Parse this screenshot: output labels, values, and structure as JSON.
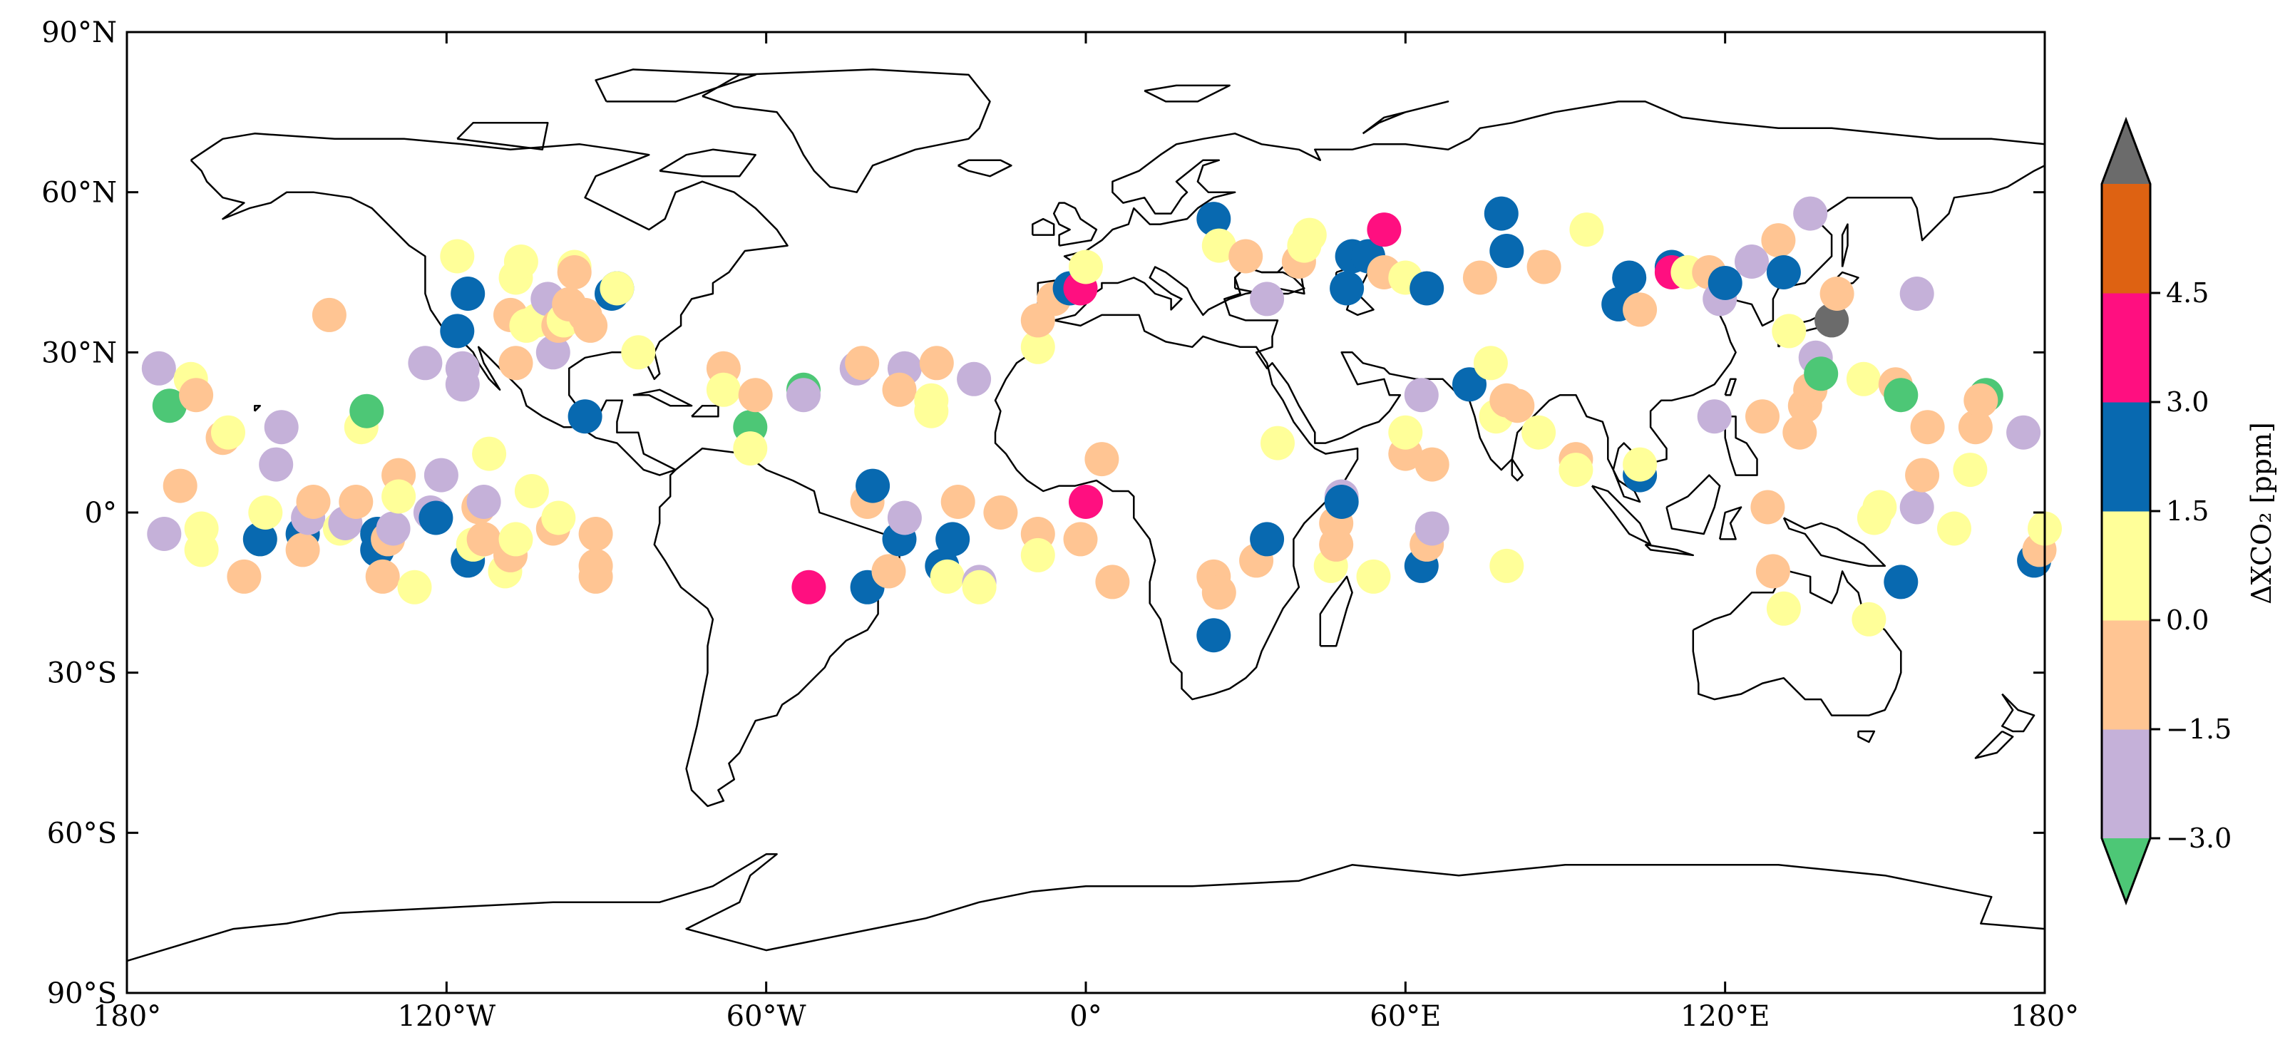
{
  "chart_data": {
    "type": "scatter",
    "projection": "plate-carree",
    "xlim": [
      -180,
      180
    ],
    "ylim": [
      -90,
      90
    ],
    "grid": false,
    "x_ticks": [
      {
        "value": -180,
        "label": "180°"
      },
      {
        "value": -120,
        "label": "120°W"
      },
      {
        "value": -60,
        "label": "60°W"
      },
      {
        "value": 0,
        "label": "0°"
      },
      {
        "value": 60,
        "label": "60°E"
      },
      {
        "value": 120,
        "label": "120°E"
      },
      {
        "value": 180,
        "label": "180°"
      }
    ],
    "y_ticks": [
      {
        "value": 90,
        "label": "90°N"
      },
      {
        "value": 60,
        "label": "60°N"
      },
      {
        "value": 30,
        "label": "30°N"
      },
      {
        "value": 0,
        "label": "0°"
      },
      {
        "value": -30,
        "label": "30°S"
      },
      {
        "value": -60,
        "label": "60°S"
      },
      {
        "value": -90,
        "label": "90°S"
      }
    ],
    "colorbar": {
      "label": "ΔXCO₂ [ppm]",
      "extend": "both",
      "bins": [
        {
          "from": -4.5,
          "to": -3.0,
          "color": "#4dc776"
        },
        {
          "from": -3.0,
          "to": -1.5,
          "color": "#c5b1d9"
        },
        {
          "from": -1.5,
          "to": 0.0,
          "color": "#ffc593"
        },
        {
          "from": 0.0,
          "to": 1.5,
          "color": "#ffff99"
        },
        {
          "from": 1.5,
          "to": 3.0,
          "color": "#0869b0"
        },
        {
          "from": 3.0,
          "to": 4.5,
          "color": "#ff0f80"
        },
        {
          "from": 4.5,
          "to": 6.0,
          "color": "#de6212"
        },
        {
          "from": 6.0,
          "to": 7.5,
          "color": "#6b6b6b"
        }
      ],
      "ticks": [
        {
          "value": 4.5,
          "label": "4.5"
        },
        {
          "value": 3.0,
          "label": "3.0"
        },
        {
          "value": 1.5,
          "label": "1.5"
        },
        {
          "value": 0.0,
          "label": "0.0"
        },
        {
          "value": -1.5,
          "label": "−1.5"
        },
        {
          "value": -3.0,
          "label": "−3.0"
        }
      ]
    },
    "points": [
      {
        "lon": -174,
        "lat": 27,
        "v": -2.2
      },
      {
        "lon": -172,
        "lat": 20,
        "v": -3.5
      },
      {
        "lon": -170,
        "lat": 5,
        "v": -0.8
      },
      {
        "lon": -173,
        "lat": -4,
        "v": -2.2
      },
      {
        "lon": -168,
        "lat": 25,
        "v": 0.5
      },
      {
        "lon": -167,
        "lat": 22,
        "v": -0.8
      },
      {
        "lon": -166,
        "lat": -3,
        "v": 0.5
      },
      {
        "lon": -166,
        "lat": -7,
        "v": 0.5
      },
      {
        "lon": -162,
        "lat": 14,
        "v": -0.8
      },
      {
        "lon": -161,
        "lat": 15,
        "v": 0.5
      },
      {
        "lon": -158,
        "lat": -12,
        "v": -0.8
      },
      {
        "lon": -155,
        "lat": -5,
        "v": 0.5
      },
      {
        "lon": -155,
        "lat": -5,
        "v": 2.0
      },
      {
        "lon": -154,
        "lat": 0,
        "v": 0.5
      },
      {
        "lon": -152,
        "lat": 9,
        "v": -2.2
      },
      {
        "lon": -151,
        "lat": 16,
        "v": -2.2
      },
      {
        "lon": -147,
        "lat": -4,
        "v": 2.0
      },
      {
        "lon": -147,
        "lat": -7,
        "v": -0.8
      },
      {
        "lon": -146,
        "lat": -1,
        "v": -2.2
      },
      {
        "lon": -145,
        "lat": 2,
        "v": -0.8
      },
      {
        "lon": -142,
        "lat": 37,
        "v": -0.8
      },
      {
        "lon": -140,
        "lat": -3,
        "v": 0.5
      },
      {
        "lon": -139,
        "lat": -2,
        "v": -2.2
      },
      {
        "lon": -137,
        "lat": 2,
        "v": -0.8
      },
      {
        "lon": -136,
        "lat": 16,
        "v": 0.5
      },
      {
        "lon": -135,
        "lat": 19,
        "v": -3.5
      },
      {
        "lon": -133,
        "lat": -4,
        "v": 2.0
      },
      {
        "lon": -133,
        "lat": -7,
        "v": 2.0
      },
      {
        "lon": -132,
        "lat": -12,
        "v": -0.8
      },
      {
        "lon": -131,
        "lat": -5,
        "v": -0.8
      },
      {
        "lon": -130,
        "lat": -3,
        "v": -2.2
      },
      {
        "lon": -129,
        "lat": 7,
        "v": -0.8
      },
      {
        "lon": -129,
        "lat": 3,
        "v": 0.5
      },
      {
        "lon": -126,
        "lat": -14,
        "v": 0.5
      },
      {
        "lon": -124,
        "lat": 28,
        "v": -2.2
      },
      {
        "lon": -123,
        "lat": 0,
        "v": -2.2
      },
      {
        "lon": -122,
        "lat": -1,
        "v": 2.0
      },
      {
        "lon": -121,
        "lat": 7,
        "v": -2.2
      },
      {
        "lon": -118,
        "lat": 48,
        "v": 0.5
      },
      {
        "lon": -118,
        "lat": 34,
        "v": 2.0
      },
      {
        "lon": -117,
        "lat": 24,
        "v": -2.2
      },
      {
        "lon": -117,
        "lat": 27,
        "v": -2.2
      },
      {
        "lon": -116,
        "lat": 41,
        "v": 2.0
      },
      {
        "lon": -116,
        "lat": -9,
        "v": 2.0
      },
      {
        "lon": -115,
        "lat": -6,
        "v": 0.5
      },
      {
        "lon": -114,
        "lat": 1,
        "v": -0.8
      },
      {
        "lon": -113,
        "lat": 2,
        "v": -2.2
      },
      {
        "lon": -113,
        "lat": -5,
        "v": -0.8
      },
      {
        "lon": -112,
        "lat": 11,
        "v": 0.5
      },
      {
        "lon": -109,
        "lat": -11,
        "v": 0.5
      },
      {
        "lon": -108,
        "lat": -8,
        "v": -0.8
      },
      {
        "lon": -108,
        "lat": 37,
        "v": -0.8
      },
      {
        "lon": -107,
        "lat": 28,
        "v": -0.8
      },
      {
        "lon": -107,
        "lat": 44,
        "v": 0.5
      },
      {
        "lon": -107,
        "lat": -5,
        "v": 0.5
      },
      {
        "lon": -106,
        "lat": 47,
        "v": 0.5
      },
      {
        "lon": -105,
        "lat": 35,
        "v": 0.5
      },
      {
        "lon": -104,
        "lat": 4,
        "v": 0.5
      },
      {
        "lon": -103,
        "lat": 36,
        "v": 0.5
      },
      {
        "lon": -101,
        "lat": 40,
        "v": -2.2
      },
      {
        "lon": -100,
        "lat": -3,
        "v": -0.8
      },
      {
        "lon": -100,
        "lat": 30,
        "v": -2.2
      },
      {
        "lon": -99,
        "lat": -1,
        "v": 0.5
      },
      {
        "lon": -99,
        "lat": 35,
        "v": -0.8
      },
      {
        "lon": -98,
        "lat": 36,
        "v": 0.5
      },
      {
        "lon": -97,
        "lat": 39,
        "v": -0.8
      },
      {
        "lon": -96,
        "lat": 46,
        "v": 0.5
      },
      {
        "lon": -96,
        "lat": 45,
        "v": -0.8
      },
      {
        "lon": -94,
        "lat": 18,
        "v": 2.0
      },
      {
        "lon": -94,
        "lat": 37,
        "v": -0.8
      },
      {
        "lon": -93,
        "lat": 35,
        "v": -0.8
      },
      {
        "lon": -92,
        "lat": -4,
        "v": -0.8
      },
      {
        "lon": -92,
        "lat": -10,
        "v": -0.8
      },
      {
        "lon": -92,
        "lat": -12,
        "v": -0.8
      },
      {
        "lon": -88,
        "lat": 42,
        "v": 2.0
      },
      {
        "lon": -89,
        "lat": 41,
        "v": 2.0
      },
      {
        "lon": -88,
        "lat": 42,
        "v": 0.5
      },
      {
        "lon": -84,
        "lat": 30,
        "v": 0.5
      },
      {
        "lon": -68,
        "lat": 27,
        "v": -0.8
      },
      {
        "lon": -68,
        "lat": 23,
        "v": 0.5
      },
      {
        "lon": -63,
        "lat": 16,
        "v": -3.5
      },
      {
        "lon": -62,
        "lat": 22,
        "v": -0.8
      },
      {
        "lon": -63,
        "lat": 12,
        "v": 0.5
      },
      {
        "lon": -53,
        "lat": 23,
        "v": -3.5
      },
      {
        "lon": -53,
        "lat": 22,
        "v": -2.2
      },
      {
        "lon": -52,
        "lat": -14,
        "v": 3.5
      },
      {
        "lon": -43,
        "lat": 27,
        "v": -2.2
      },
      {
        "lon": -42,
        "lat": 28,
        "v": -0.8
      },
      {
        "lon": -41,
        "lat": 2,
        "v": -0.8
      },
      {
        "lon": -40,
        "lat": 5,
        "v": 2.0
      },
      {
        "lon": -41,
        "lat": -14,
        "v": 2.0
      },
      {
        "lon": -37,
        "lat": -11,
        "v": -0.8
      },
      {
        "lon": -35,
        "lat": -5,
        "v": 2.0
      },
      {
        "lon": -34,
        "lat": 27,
        "v": -2.2
      },
      {
        "lon": -35,
        "lat": 23,
        "v": -0.8
      },
      {
        "lon": -34,
        "lat": -1,
        "v": -2.2
      },
      {
        "lon": -29,
        "lat": 21,
        "v": 0.5
      },
      {
        "lon": -29,
        "lat": 19,
        "v": 0.5
      },
      {
        "lon": -28,
        "lat": 28,
        "v": -0.8
      },
      {
        "lon": -27,
        "lat": -10,
        "v": 2.0
      },
      {
        "lon": -26,
        "lat": -12,
        "v": 0.5
      },
      {
        "lon": -25,
        "lat": -5,
        "v": 2.0
      },
      {
        "lon": -24,
        "lat": 2,
        "v": -0.8
      },
      {
        "lon": -21,
        "lat": 25,
        "v": -2.2
      },
      {
        "lon": -20,
        "lat": -13,
        "v": -2.2
      },
      {
        "lon": -20,
        "lat": -14,
        "v": 0.5
      },
      {
        "lon": -16,
        "lat": 0,
        "v": -0.8
      },
      {
        "lon": -9,
        "lat": -4,
        "v": -0.8
      },
      {
        "lon": -9,
        "lat": -8,
        "v": 0.5
      },
      {
        "lon": -9,
        "lat": 31,
        "v": 0.5
      },
      {
        "lon": -9,
        "lat": 36,
        "v": -0.8
      },
      {
        "lon": -6,
        "lat": 40,
        "v": -0.8
      },
      {
        "lon": -3,
        "lat": 42,
        "v": 2.0
      },
      {
        "lon": -1,
        "lat": 42,
        "v": 3.5
      },
      {
        "lon": 0,
        "lat": 46,
        "v": 0.5
      },
      {
        "lon": -1,
        "lat": -5,
        "v": -0.8
      },
      {
        "lon": 0,
        "lat": 2,
        "v": 3.5
      },
      {
        "lon": 3,
        "lat": 10,
        "v": -0.8
      },
      {
        "lon": 5,
        "lat": -13,
        "v": -0.8
      },
      {
        "lon": 24,
        "lat": 55,
        "v": 2.0
      },
      {
        "lon": 24,
        "lat": -23,
        "v": 2.0
      },
      {
        "lon": 24,
        "lat": -12,
        "v": -0.8
      },
      {
        "lon": 25,
        "lat": -15,
        "v": -0.8
      },
      {
        "lon": 25,
        "lat": 50,
        "v": 0.5
      },
      {
        "lon": 30,
        "lat": 48,
        "v": -0.8
      },
      {
        "lon": 32,
        "lat": -9,
        "v": -0.8
      },
      {
        "lon": 34,
        "lat": 40,
        "v": -2.2
      },
      {
        "lon": 34,
        "lat": -5,
        "v": 2.0
      },
      {
        "lon": 36,
        "lat": 13,
        "v": 0.5
      },
      {
        "lon": 40,
        "lat": 47,
        "v": -0.8
      },
      {
        "lon": 41,
        "lat": 50,
        "v": 0.5
      },
      {
        "lon": 42,
        "lat": 52,
        "v": 0.5
      },
      {
        "lon": 46,
        "lat": -10,
        "v": 0.5
      },
      {
        "lon": 47,
        "lat": -6,
        "v": -0.8
      },
      {
        "lon": 47,
        "lat": -2,
        "v": -0.8
      },
      {
        "lon": 48,
        "lat": 3,
        "v": -2.2
      },
      {
        "lon": 48,
        "lat": 2,
        "v": 2.0
      },
      {
        "lon": 49,
        "lat": 42,
        "v": 2.0
      },
      {
        "lon": 50,
        "lat": 48,
        "v": 2.0
      },
      {
        "lon": 53,
        "lat": 48,
        "v": 2.0
      },
      {
        "lon": 54,
        "lat": -12,
        "v": 0.5
      },
      {
        "lon": 56,
        "lat": 53,
        "v": 3.5
      },
      {
        "lon": 56,
        "lat": 45,
        "v": -0.8
      },
      {
        "lon": 60,
        "lat": 11,
        "v": -0.8
      },
      {
        "lon": 60,
        "lat": 15,
        "v": 0.5
      },
      {
        "lon": 60,
        "lat": 44,
        "v": 0.5
      },
      {
        "lon": 63,
        "lat": 22,
        "v": -2.2
      },
      {
        "lon": 63,
        "lat": -10,
        "v": 2.0
      },
      {
        "lon": 64,
        "lat": 42,
        "v": 2.0
      },
      {
        "lon": 64,
        "lat": -6,
        "v": -0.8
      },
      {
        "lon": 65,
        "lat": 9,
        "v": -0.8
      },
      {
        "lon": 65,
        "lat": -3,
        "v": -2.2
      },
      {
        "lon": 74,
        "lat": 44,
        "v": -0.8
      },
      {
        "lon": 72,
        "lat": 24,
        "v": 2.0
      },
      {
        "lon": 76,
        "lat": 28,
        "v": 0.5
      },
      {
        "lon": 77,
        "lat": 18,
        "v": 0.5
      },
      {
        "lon": 78,
        "lat": 56,
        "v": 2.0
      },
      {
        "lon": 79,
        "lat": 21,
        "v": -0.8
      },
      {
        "lon": 79,
        "lat": 49,
        "v": 2.0
      },
      {
        "lon": 79,
        "lat": -10,
        "v": 0.5
      },
      {
        "lon": 81,
        "lat": 20,
        "v": -0.8
      },
      {
        "lon": 85,
        "lat": 15,
        "v": 0.5
      },
      {
        "lon": 86,
        "lat": 46,
        "v": -0.8
      },
      {
        "lon": 92,
        "lat": 10,
        "v": -0.8
      },
      {
        "lon": 92,
        "lat": 8,
        "v": 0.5
      },
      {
        "lon": 94,
        "lat": 53,
        "v": 0.5
      },
      {
        "lon": 100,
        "lat": 39,
        "v": 2.0
      },
      {
        "lon": 102,
        "lat": 44,
        "v": 2.0
      },
      {
        "lon": 104,
        "lat": 38,
        "v": -0.8
      },
      {
        "lon": 104,
        "lat": 7,
        "v": 2.0
      },
      {
        "lon": 104,
        "lat": 9,
        "v": 0.5
      },
      {
        "lon": 110,
        "lat": 46,
        "v": 2.0
      },
      {
        "lon": 110,
        "lat": 45,
        "v": 3.5
      },
      {
        "lon": 113,
        "lat": 45,
        "v": 0.5
      },
      {
        "lon": 117,
        "lat": 45,
        "v": -0.8
      },
      {
        "lon": 118,
        "lat": 18,
        "v": -2.2
      },
      {
        "lon": 119,
        "lat": 40,
        "v": -2.2
      },
      {
        "lon": 120,
        "lat": 43,
        "v": 2.0
      },
      {
        "lon": 125,
        "lat": 47,
        "v": -2.2
      },
      {
        "lon": 127,
        "lat": 18,
        "v": -0.8
      },
      {
        "lon": 128,
        "lat": 1,
        "v": -0.8
      },
      {
        "lon": 130,
        "lat": 51,
        "v": -0.8
      },
      {
        "lon": 131,
        "lat": 45,
        "v": 2.0
      },
      {
        "lon": 129,
        "lat": -11,
        "v": -0.8
      },
      {
        "lon": 131,
        "lat": -18,
        "v": 0.5
      },
      {
        "lon": 132,
        "lat": 34,
        "v": 0.5
      },
      {
        "lon": 134,
        "lat": 15,
        "v": -0.8
      },
      {
        "lon": 135,
        "lat": 20,
        "v": -0.8
      },
      {
        "lon": 136,
        "lat": 23,
        "v": -0.8
      },
      {
        "lon": 136,
        "lat": 56,
        "v": -2.2
      },
      {
        "lon": 137,
        "lat": 29,
        "v": -2.2
      },
      {
        "lon": 138,
        "lat": 26,
        "v": -3.5
      },
      {
        "lon": 140,
        "lat": 36,
        "v": 6.5
      },
      {
        "lon": 141,
        "lat": 41,
        "v": -0.8
      },
      {
        "lon": 146,
        "lat": 25,
        "v": 0.5
      },
      {
        "lon": 147,
        "lat": -20,
        "v": 0.5
      },
      {
        "lon": 148,
        "lat": -1,
        "v": 0.5
      },
      {
        "lon": 149,
        "lat": 1,
        "v": 0.5
      },
      {
        "lon": 152,
        "lat": 24,
        "v": -0.8
      },
      {
        "lon": 153,
        "lat": 22,
        "v": -3.5
      },
      {
        "lon": 153,
        "lat": -13,
        "v": 2.0
      },
      {
        "lon": 156,
        "lat": 41,
        "v": -2.2
      },
      {
        "lon": 156,
        "lat": 1,
        "v": -2.2
      },
      {
        "lon": 157,
        "lat": 7,
        "v": -0.8
      },
      {
        "lon": 158,
        "lat": 16,
        "v": -0.8
      },
      {
        "lon": 163,
        "lat": -3,
        "v": 0.5
      },
      {
        "lon": 166,
        "lat": 8,
        "v": 0.5
      },
      {
        "lon": 167,
        "lat": 16,
        "v": -0.8
      },
      {
        "lon": 169,
        "lat": 22,
        "v": -3.5
      },
      {
        "lon": 168,
        "lat": 21,
        "v": -0.8
      },
      {
        "lon": 176,
        "lat": 15,
        "v": -2.2
      },
      {
        "lon": 178,
        "lat": -9,
        "v": 2.0
      },
      {
        "lon": 179,
        "lat": -7,
        "v": -0.8
      },
      {
        "lon": 180,
        "lat": -3,
        "v": 0.5
      }
    ]
  }
}
